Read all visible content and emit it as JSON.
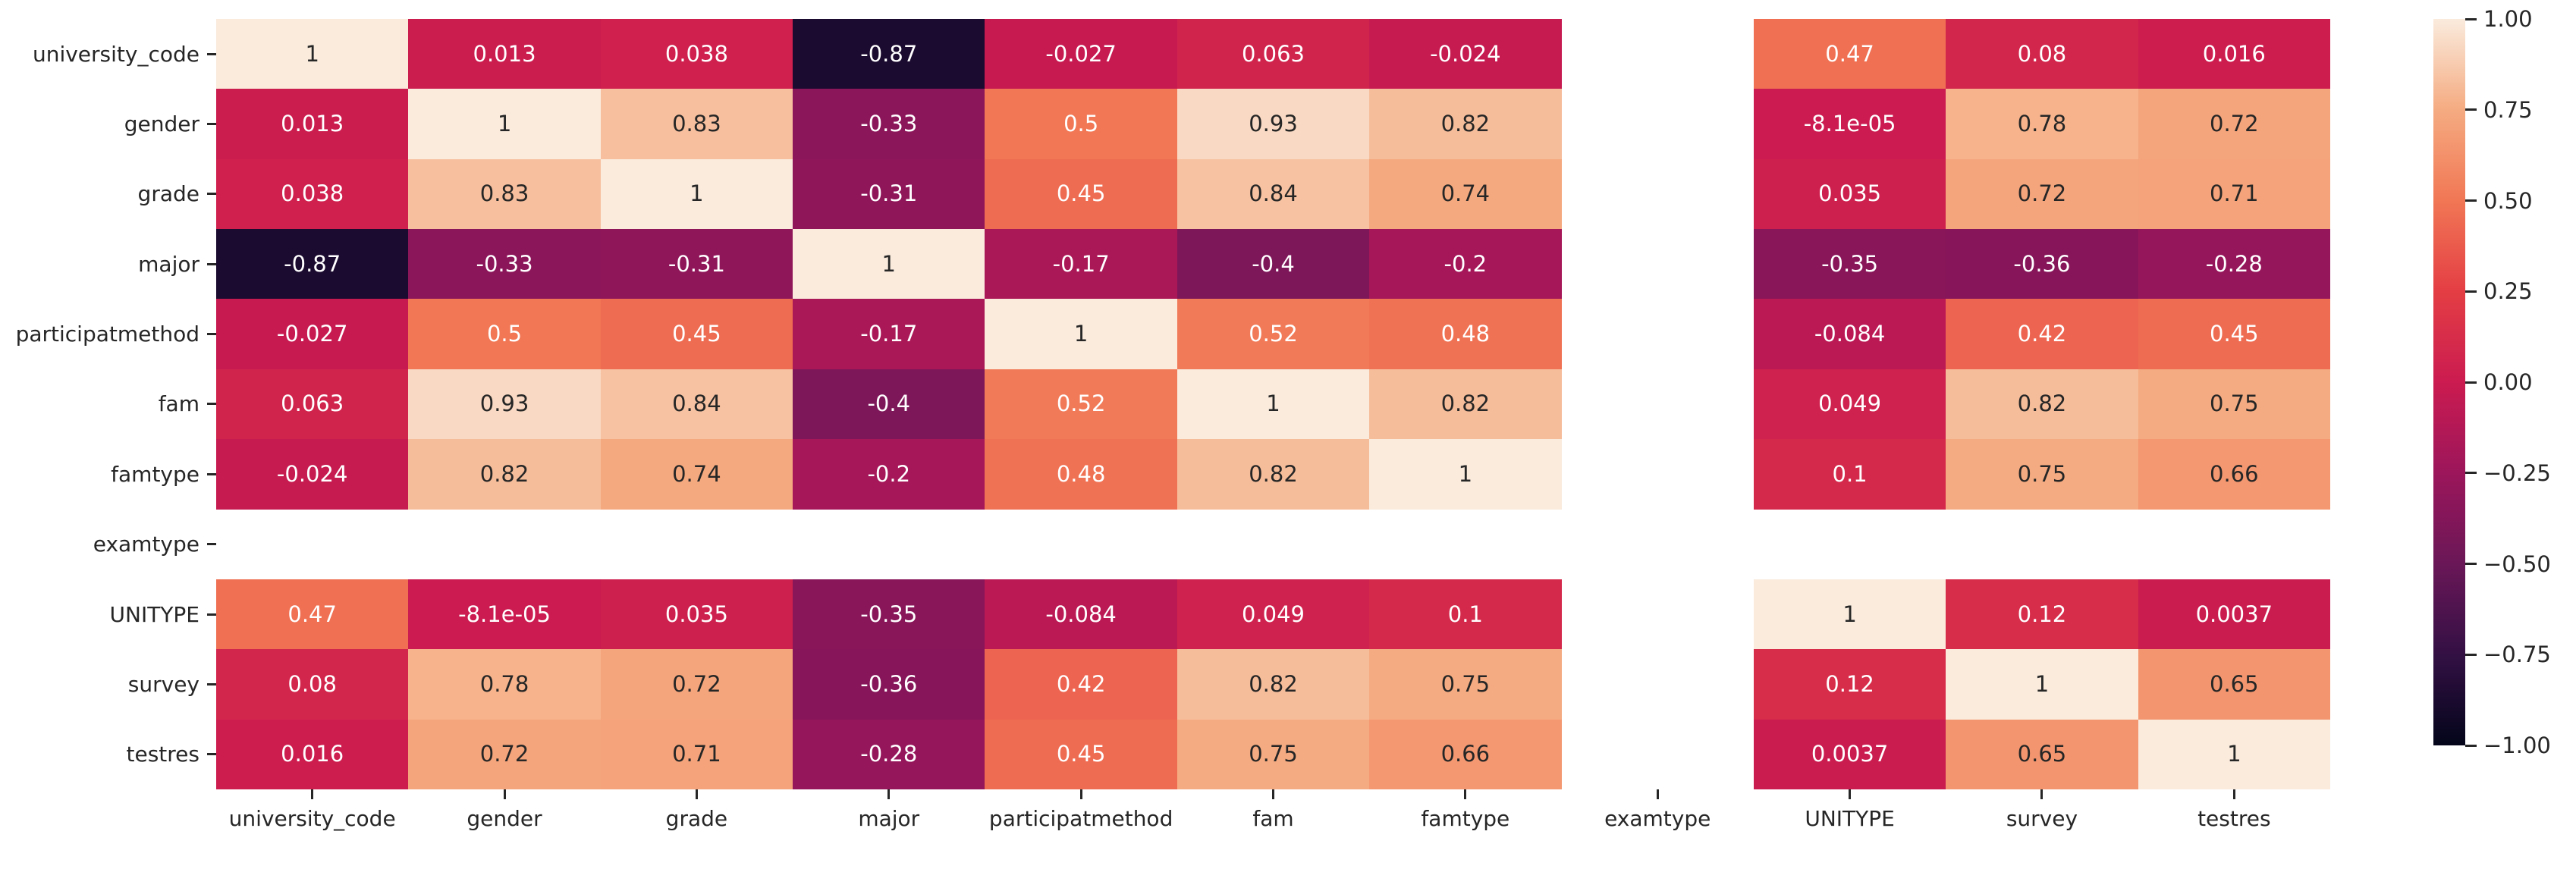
{
  "chart_data": {
    "type": "heatmap",
    "title": "",
    "x_labels": [
      "university_code",
      "gender",
      "grade",
      "major",
      "participatmethod",
      "fam",
      "famtype",
      "examtype",
      "UNITYPE",
      "survey",
      "testres"
    ],
    "y_labels": [
      "university_code",
      "gender",
      "grade",
      "major",
      "participatmethod",
      "fam",
      "famtype",
      "examtype",
      "UNITYPE",
      "survey",
      "testres"
    ],
    "matrix": [
      [
        1,
        0.013,
        0.038,
        -0.87,
        -0.027,
        0.063,
        -0.024,
        null,
        0.47,
        0.08,
        0.016
      ],
      [
        0.013,
        1,
        0.83,
        -0.33,
        0.5,
        0.93,
        0.82,
        null,
        -8.1e-05,
        0.78,
        0.72
      ],
      [
        0.038,
        0.83,
        1,
        -0.31,
        0.45,
        0.84,
        0.74,
        null,
        0.035,
        0.72,
        0.71
      ],
      [
        -0.87,
        -0.33,
        -0.31,
        1,
        -0.17,
        -0.4,
        -0.2,
        null,
        -0.35,
        -0.36,
        -0.28
      ],
      [
        -0.027,
        0.5,
        0.45,
        -0.17,
        1,
        0.52,
        0.48,
        null,
        -0.084,
        0.42,
        0.45
      ],
      [
        0.063,
        0.93,
        0.84,
        -0.4,
        0.52,
        1,
        0.82,
        null,
        0.049,
        0.82,
        0.75
      ],
      [
        -0.024,
        0.82,
        0.74,
        -0.2,
        0.48,
        0.82,
        1,
        null,
        0.1,
        0.75,
        0.66
      ],
      [
        null,
        null,
        null,
        null,
        null,
        null,
        null,
        null,
        null,
        null,
        null
      ],
      [
        0.47,
        -8.1e-05,
        0.035,
        -0.35,
        -0.084,
        0.049,
        0.1,
        null,
        1,
        0.12,
        0.0037
      ],
      [
        0.08,
        0.78,
        0.72,
        -0.36,
        0.42,
        0.82,
        0.75,
        null,
        0.12,
        1,
        0.65
      ],
      [
        0.016,
        0.72,
        0.71,
        -0.28,
        0.45,
        0.75,
        0.66,
        null,
        0.0037,
        0.65,
        1
      ]
    ],
    "cell_text": [
      [
        "1",
        "0.013",
        "0.038",
        "-0.87",
        "-0.027",
        "0.063",
        "-0.024",
        null,
        "0.47",
        "0.08",
        "0.016"
      ],
      [
        "0.013",
        "1",
        "0.83",
        "-0.33",
        "0.5",
        "0.93",
        "0.82",
        null,
        "-8.1e-05",
        "0.78",
        "0.72"
      ],
      [
        "0.038",
        "0.83",
        "1",
        "-0.31",
        "0.45",
        "0.84",
        "0.74",
        null,
        "0.035",
        "0.72",
        "0.71"
      ],
      [
        "-0.87",
        "-0.33",
        "-0.31",
        "1",
        "-0.17",
        "-0.4",
        "-0.2",
        null,
        "-0.35",
        "-0.36",
        "-0.28"
      ],
      [
        "-0.027",
        "0.5",
        "0.45",
        "-0.17",
        "1",
        "0.52",
        "0.48",
        null,
        "-0.084",
        "0.42",
        "0.45"
      ],
      [
        "0.063",
        "0.93",
        "0.84",
        "-0.4",
        "0.52",
        "1",
        "0.82",
        null,
        "0.049",
        "0.82",
        "0.75"
      ],
      [
        "-0.024",
        "0.82",
        "0.74",
        "-0.2",
        "0.48",
        "0.82",
        "1",
        null,
        "0.1",
        "0.75",
        "0.66"
      ],
      [
        null,
        null,
        null,
        null,
        null,
        null,
        null,
        null,
        null,
        null,
        null
      ],
      [
        "0.47",
        "-8.1e-05",
        "0.035",
        "-0.35",
        "-0.084",
        "0.049",
        "0.1",
        null,
        "1",
        "0.12",
        "0.0037"
      ],
      [
        "0.08",
        "0.78",
        "0.72",
        "-0.36",
        "0.42",
        "0.82",
        "0.75",
        null,
        "0.12",
        "1",
        "0.65"
      ],
      [
        "0.016",
        "0.72",
        "0.71",
        "-0.28",
        "0.45",
        "0.75",
        "0.66",
        null,
        "0.0037",
        "0.65",
        "1"
      ]
    ],
    "value_range": [
      -1,
      1
    ],
    "grid": false,
    "legend_position": "right-colorbar",
    "colormap": {
      "name": "rocket",
      "stops": [
        [
          0.0,
          "#03051A"
        ],
        [
          0.125,
          "#331044"
        ],
        [
          0.25,
          "#6A1757"
        ],
        [
          0.375,
          "#9C165B"
        ],
        [
          0.5,
          "#CB1B50"
        ],
        [
          0.625,
          "#E43E44"
        ],
        [
          0.75,
          "#F17755"
        ],
        [
          0.875,
          "#F5AB81"
        ],
        [
          1.0,
          "#FAEBDD"
        ]
      ]
    },
    "colorbar": {
      "tick_labels": [
        "1.00",
        "0.75",
        "0.50",
        "0.25",
        "0.00",
        "−0.25",
        "−0.50",
        "−0.75",
        "−1.00"
      ],
      "tick_values": [
        1,
        0.75,
        0.5,
        0.25,
        0,
        -0.25,
        -0.5,
        -0.75,
        -1
      ]
    },
    "colors": {
      "background": "#FFFFFF",
      "annotation_dark_text": "#262626",
      "annotation_light_text": "#FFFFFF",
      "axis_text": "#262626",
      "tick_mark": "#262626",
      "empty_cell": "#FFFFFF"
    }
  }
}
